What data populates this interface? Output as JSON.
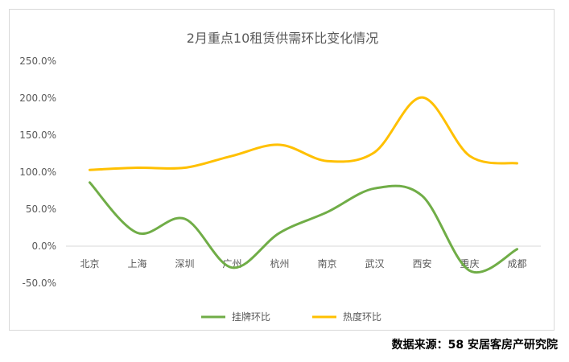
{
  "chart_data": {
    "type": "line",
    "title": "2月重点10租赁供需环比变化情况",
    "categories": [
      "北京",
      "上海",
      "深圳",
      "广州",
      "杭州",
      "南京",
      "武汉",
      "西安",
      "重庆",
      "成都"
    ],
    "series": [
      {
        "name": "挂牌环比",
        "color": "#70ad47",
        "values": [
          86,
          18,
          37,
          -29,
          18,
          46,
          78,
          68,
          -33,
          -4
        ]
      },
      {
        "name": "热度环比",
        "color": "#ffc000",
        "values": [
          103,
          106,
          106,
          122,
          137,
          115,
          127,
          201,
          122,
          112
        ]
      }
    ],
    "yticks": [
      "250.0%",
      "200.0%",
      "150.0%",
      "100.0%",
      "50.0%",
      "0.0%",
      "-50.0%"
    ],
    "ylim": [
      -50,
      250
    ],
    "grid": false,
    "legend": "bottom"
  },
  "source": "数据来源：58 安居客房产研究院"
}
